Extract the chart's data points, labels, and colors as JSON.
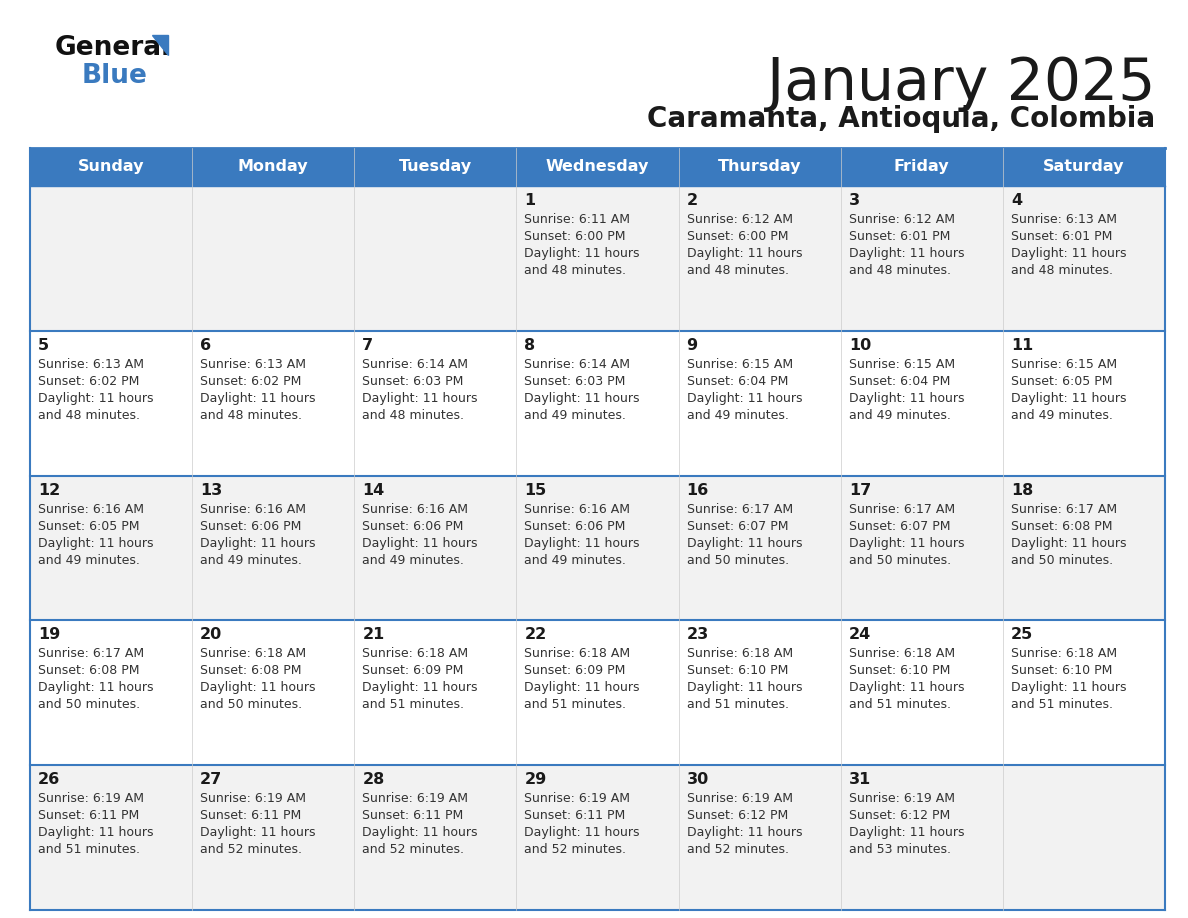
{
  "title": "January 2025",
  "subtitle": "Caramanta, Antioquia, Colombia",
  "header_bg": "#3a7abf",
  "header_text": "#ffffff",
  "day_names": [
    "Sunday",
    "Monday",
    "Tuesday",
    "Wednesday",
    "Thursday",
    "Friday",
    "Saturday"
  ],
  "cell_bg_light": "#f2f2f2",
  "cell_bg_white": "#ffffff",
  "border_color": "#3a7abf",
  "row_line_color": "#3a7abf",
  "title_color": "#1a1a1a",
  "subtitle_color": "#1a1a1a",
  "day_num_color": "#1a1a1a",
  "cell_text_color": "#333333",
  "logo_general_color": "#111111",
  "logo_blue_color": "#3a7abf",
  "logo_triangle_color": "#3a7abf",
  "calendar": [
    [
      null,
      null,
      null,
      {
        "day": "1",
        "sunrise": "6:11 AM",
        "sunset": "6:00 PM",
        "daylight": "11 hours",
        "daylight2": "and 48 minutes."
      },
      {
        "day": "2",
        "sunrise": "6:12 AM",
        "sunset": "6:00 PM",
        "daylight": "11 hours",
        "daylight2": "and 48 minutes."
      },
      {
        "day": "3",
        "sunrise": "6:12 AM",
        "sunset": "6:01 PM",
        "daylight": "11 hours",
        "daylight2": "and 48 minutes."
      },
      {
        "day": "4",
        "sunrise": "6:13 AM",
        "sunset": "6:01 PM",
        "daylight": "11 hours",
        "daylight2": "and 48 minutes."
      }
    ],
    [
      {
        "day": "5",
        "sunrise": "6:13 AM",
        "sunset": "6:02 PM",
        "daylight": "11 hours",
        "daylight2": "and 48 minutes."
      },
      {
        "day": "6",
        "sunrise": "6:13 AM",
        "sunset": "6:02 PM",
        "daylight": "11 hours",
        "daylight2": "and 48 minutes."
      },
      {
        "day": "7",
        "sunrise": "6:14 AM",
        "sunset": "6:03 PM",
        "daylight": "11 hours",
        "daylight2": "and 48 minutes."
      },
      {
        "day": "8",
        "sunrise": "6:14 AM",
        "sunset": "6:03 PM",
        "daylight": "11 hours",
        "daylight2": "and 49 minutes."
      },
      {
        "day": "9",
        "sunrise": "6:15 AM",
        "sunset": "6:04 PM",
        "daylight": "11 hours",
        "daylight2": "and 49 minutes."
      },
      {
        "day": "10",
        "sunrise": "6:15 AM",
        "sunset": "6:04 PM",
        "daylight": "11 hours",
        "daylight2": "and 49 minutes."
      },
      {
        "day": "11",
        "sunrise": "6:15 AM",
        "sunset": "6:05 PM",
        "daylight": "11 hours",
        "daylight2": "and 49 minutes."
      }
    ],
    [
      {
        "day": "12",
        "sunrise": "6:16 AM",
        "sunset": "6:05 PM",
        "daylight": "11 hours",
        "daylight2": "and 49 minutes."
      },
      {
        "day": "13",
        "sunrise": "6:16 AM",
        "sunset": "6:06 PM",
        "daylight": "11 hours",
        "daylight2": "and 49 minutes."
      },
      {
        "day": "14",
        "sunrise": "6:16 AM",
        "sunset": "6:06 PM",
        "daylight": "11 hours",
        "daylight2": "and 49 minutes."
      },
      {
        "day": "15",
        "sunrise": "6:16 AM",
        "sunset": "6:06 PM",
        "daylight": "11 hours",
        "daylight2": "and 49 minutes."
      },
      {
        "day": "16",
        "sunrise": "6:17 AM",
        "sunset": "6:07 PM",
        "daylight": "11 hours",
        "daylight2": "and 50 minutes."
      },
      {
        "day": "17",
        "sunrise": "6:17 AM",
        "sunset": "6:07 PM",
        "daylight": "11 hours",
        "daylight2": "and 50 minutes."
      },
      {
        "day": "18",
        "sunrise": "6:17 AM",
        "sunset": "6:08 PM",
        "daylight": "11 hours",
        "daylight2": "and 50 minutes."
      }
    ],
    [
      {
        "day": "19",
        "sunrise": "6:17 AM",
        "sunset": "6:08 PM",
        "daylight": "11 hours",
        "daylight2": "and 50 minutes."
      },
      {
        "day": "20",
        "sunrise": "6:18 AM",
        "sunset": "6:08 PM",
        "daylight": "11 hours",
        "daylight2": "and 50 minutes."
      },
      {
        "day": "21",
        "sunrise": "6:18 AM",
        "sunset": "6:09 PM",
        "daylight": "11 hours",
        "daylight2": "and 51 minutes."
      },
      {
        "day": "22",
        "sunrise": "6:18 AM",
        "sunset": "6:09 PM",
        "daylight": "11 hours",
        "daylight2": "and 51 minutes."
      },
      {
        "day": "23",
        "sunrise": "6:18 AM",
        "sunset": "6:10 PM",
        "daylight": "11 hours",
        "daylight2": "and 51 minutes."
      },
      {
        "day": "24",
        "sunrise": "6:18 AM",
        "sunset": "6:10 PM",
        "daylight": "11 hours",
        "daylight2": "and 51 minutes."
      },
      {
        "day": "25",
        "sunrise": "6:18 AM",
        "sunset": "6:10 PM",
        "daylight": "11 hours",
        "daylight2": "and 51 minutes."
      }
    ],
    [
      {
        "day": "26",
        "sunrise": "6:19 AM",
        "sunset": "6:11 PM",
        "daylight": "11 hours",
        "daylight2": "and 51 minutes."
      },
      {
        "day": "27",
        "sunrise": "6:19 AM",
        "sunset": "6:11 PM",
        "daylight": "11 hours",
        "daylight2": "and 52 minutes."
      },
      {
        "day": "28",
        "sunrise": "6:19 AM",
        "sunset": "6:11 PM",
        "daylight": "11 hours",
        "daylight2": "and 52 minutes."
      },
      {
        "day": "29",
        "sunrise": "6:19 AM",
        "sunset": "6:11 PM",
        "daylight": "11 hours",
        "daylight2": "and 52 minutes."
      },
      {
        "day": "30",
        "sunrise": "6:19 AM",
        "sunset": "6:12 PM",
        "daylight": "11 hours",
        "daylight2": "and 52 minutes."
      },
      {
        "day": "31",
        "sunrise": "6:19 AM",
        "sunset": "6:12 PM",
        "daylight": "11 hours",
        "daylight2": "and 53 minutes."
      },
      null
    ]
  ]
}
